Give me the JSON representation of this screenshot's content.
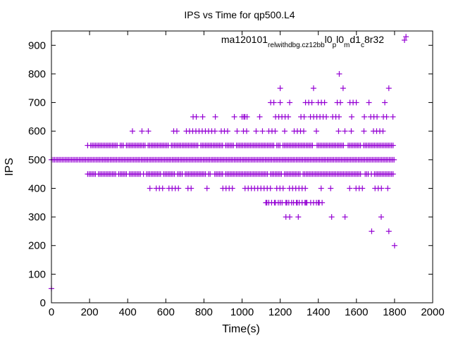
{
  "chart_data": {
    "type": "scatter",
    "title": "IPS vs Time for qp500.L4",
    "xlabel": "Time(s)",
    "ylabel": "IPS",
    "xlim": [
      0,
      2000
    ],
    "ylim": [
      0,
      950
    ],
    "xticks": [
      0,
      200,
      400,
      600,
      800,
      1000,
      1200,
      1400,
      1600,
      1800,
      2000
    ],
    "yticks": [
      0,
      100,
      200,
      300,
      400,
      500,
      600,
      700,
      800,
      900
    ],
    "grid": false,
    "legend_position": "top-right",
    "marker": "plus",
    "series": [
      {
        "name": "ma120101_rel_withdbg.cz12b_bl0_pl0_md1_c8r32",
        "name_display": {
          "segments": [
            {
              "text": "ma120101",
              "sub": false
            },
            {
              "text": "rel",
              "sub": true
            },
            {
              "text": "withdbg.cz12b",
              "sub": true
            },
            {
              "text": "b",
              "sub": true
            },
            {
              "text": "l0",
              "sub": false
            },
            {
              "text": "p",
              "sub": true
            },
            {
              "text": "l0",
              "sub": false
            },
            {
              "text": "m",
              "sub": true
            },
            {
              "text": "d1",
              "sub": false
            },
            {
              "text": "c",
              "sub": true
            },
            {
              "text": "8r32",
              "sub": false
            }
          ]
        },
        "color": "#9400d3",
        "points": [
          [
            0,
            50
          ],
          [
            1860,
            930
          ],
          [
            1510,
            800
          ],
          [
            1200,
            750
          ],
          [
            1375,
            750
          ],
          [
            1530,
            750
          ],
          [
            1770,
            750
          ],
          [
            1000,
            650
          ],
          [
            1015,
            650
          ],
          [
            1125,
            350
          ],
          [
            1130,
            350
          ],
          [
            1140,
            350
          ],
          [
            1155,
            350
          ],
          [
            1170,
            350
          ],
          [
            1175,
            350
          ],
          [
            1190,
            350
          ],
          [
            1200,
            350
          ],
          [
            1210,
            350
          ],
          [
            1230,
            350
          ],
          [
            1235,
            350
          ],
          [
            1245,
            350
          ],
          [
            1260,
            350
          ],
          [
            1270,
            350
          ],
          [
            1285,
            350
          ],
          [
            1290,
            350
          ],
          [
            1300,
            350
          ],
          [
            1315,
            350
          ],
          [
            1330,
            350
          ],
          [
            1335,
            350
          ],
          [
            1340,
            350
          ],
          [
            1360,
            350
          ],
          [
            1375,
            350
          ],
          [
            1390,
            350
          ],
          [
            1400,
            350
          ],
          [
            1405,
            350
          ],
          [
            1420,
            350
          ],
          [
            1230,
            300
          ],
          [
            1250,
            300
          ],
          [
            1295,
            300
          ],
          [
            1470,
            300
          ],
          [
            1540,
            300
          ],
          [
            1730,
            300
          ],
          [
            1680,
            250
          ],
          [
            1770,
            250
          ],
          [
            1800,
            200
          ]
        ],
        "dense_bands": [
          {
            "y": 500,
            "x_from": 0,
            "x_to": 1800
          },
          {
            "y": 550,
            "x_from": 190,
            "x_to": 1800
          },
          {
            "y": 450,
            "x_from": 190,
            "x_to": 1800
          },
          {
            "y": 600,
            "x_from": 425,
            "x_to": 1780
          },
          {
            "y": 400,
            "x_from": 450,
            "x_to": 1800
          },
          {
            "y": 650,
            "x_from": 710,
            "x_to": 1800
          },
          {
            "y": 700,
            "x_from": 1150,
            "x_to": 1780
          }
        ]
      }
    ]
  }
}
